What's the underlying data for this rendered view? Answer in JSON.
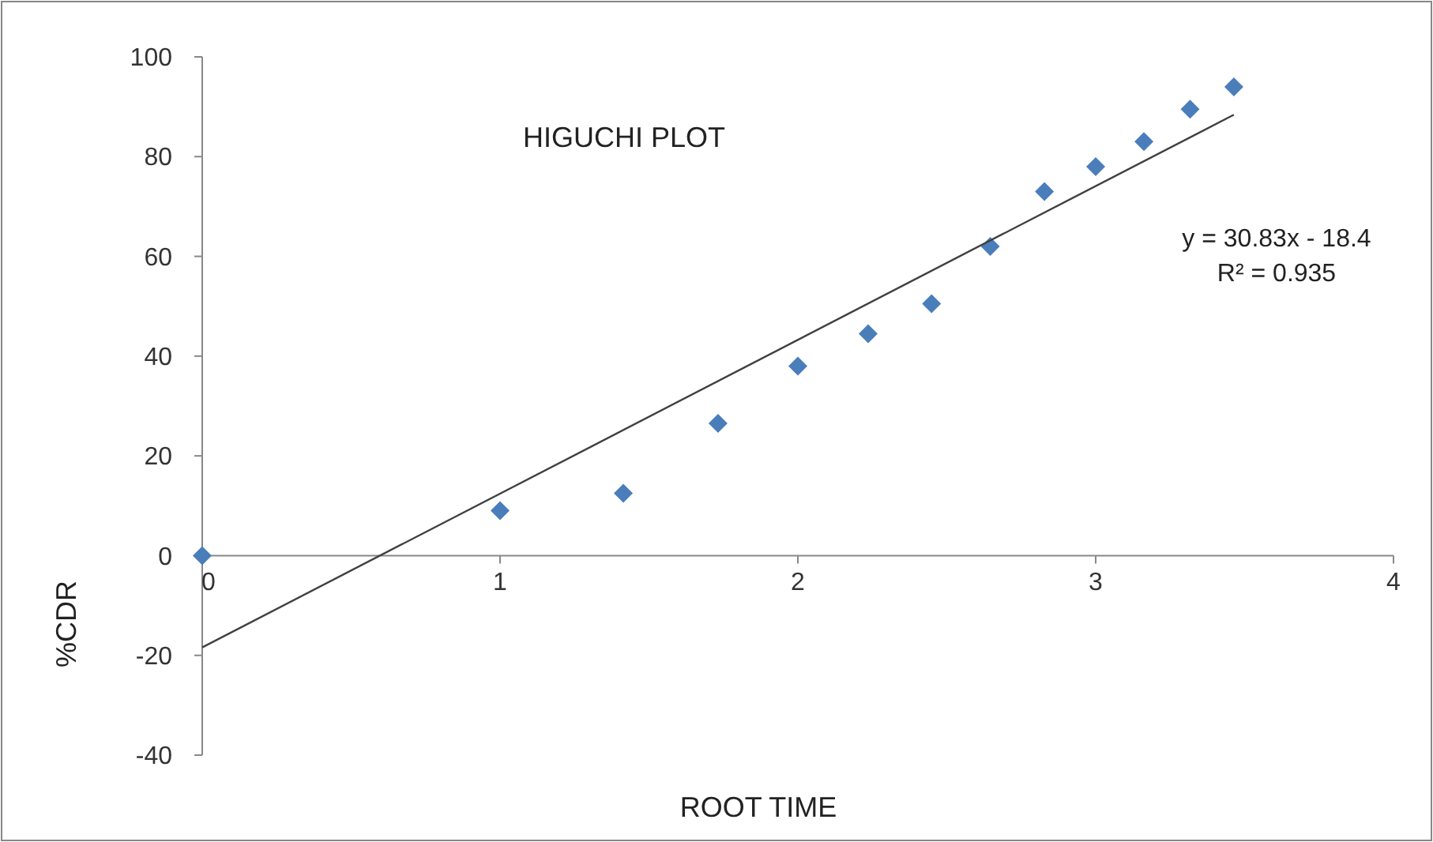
{
  "chart_data": {
    "type": "scatter",
    "title": "HIGUCHI PLOT",
    "xlabel": "ROOT TIME",
    "ylabel": "%CDR",
    "xlim": [
      0,
      4
    ],
    "xticks": [
      0,
      1,
      2,
      3,
      4
    ],
    "ylim": [
      -40,
      100
    ],
    "yticks": [
      -40,
      -20,
      0,
      20,
      40,
      60,
      80,
      100
    ],
    "grid": false,
    "series": [
      {
        "marker": "diamond",
        "color": "#4a7ebb",
        "x": [
          0,
          1,
          1.414,
          1.732,
          2,
          2.236,
          2.449,
          2.646,
          2.828,
          3,
          3.162,
          3.317,
          3.464
        ],
        "values": [
          0,
          9,
          12.5,
          26.5,
          38,
          44.5,
          50.5,
          62,
          73,
          78,
          83,
          89.5,
          94
        ]
      },
      {
        "type": "line",
        "color": "#404040",
        "x": [
          0,
          3.464
        ],
        "values": [
          -18.4,
          88.4
        ],
        "line_style": "solid"
      }
    ],
    "annotations": [
      "y = 30.83x - 18.4",
      "R² = 0.935"
    ]
  }
}
